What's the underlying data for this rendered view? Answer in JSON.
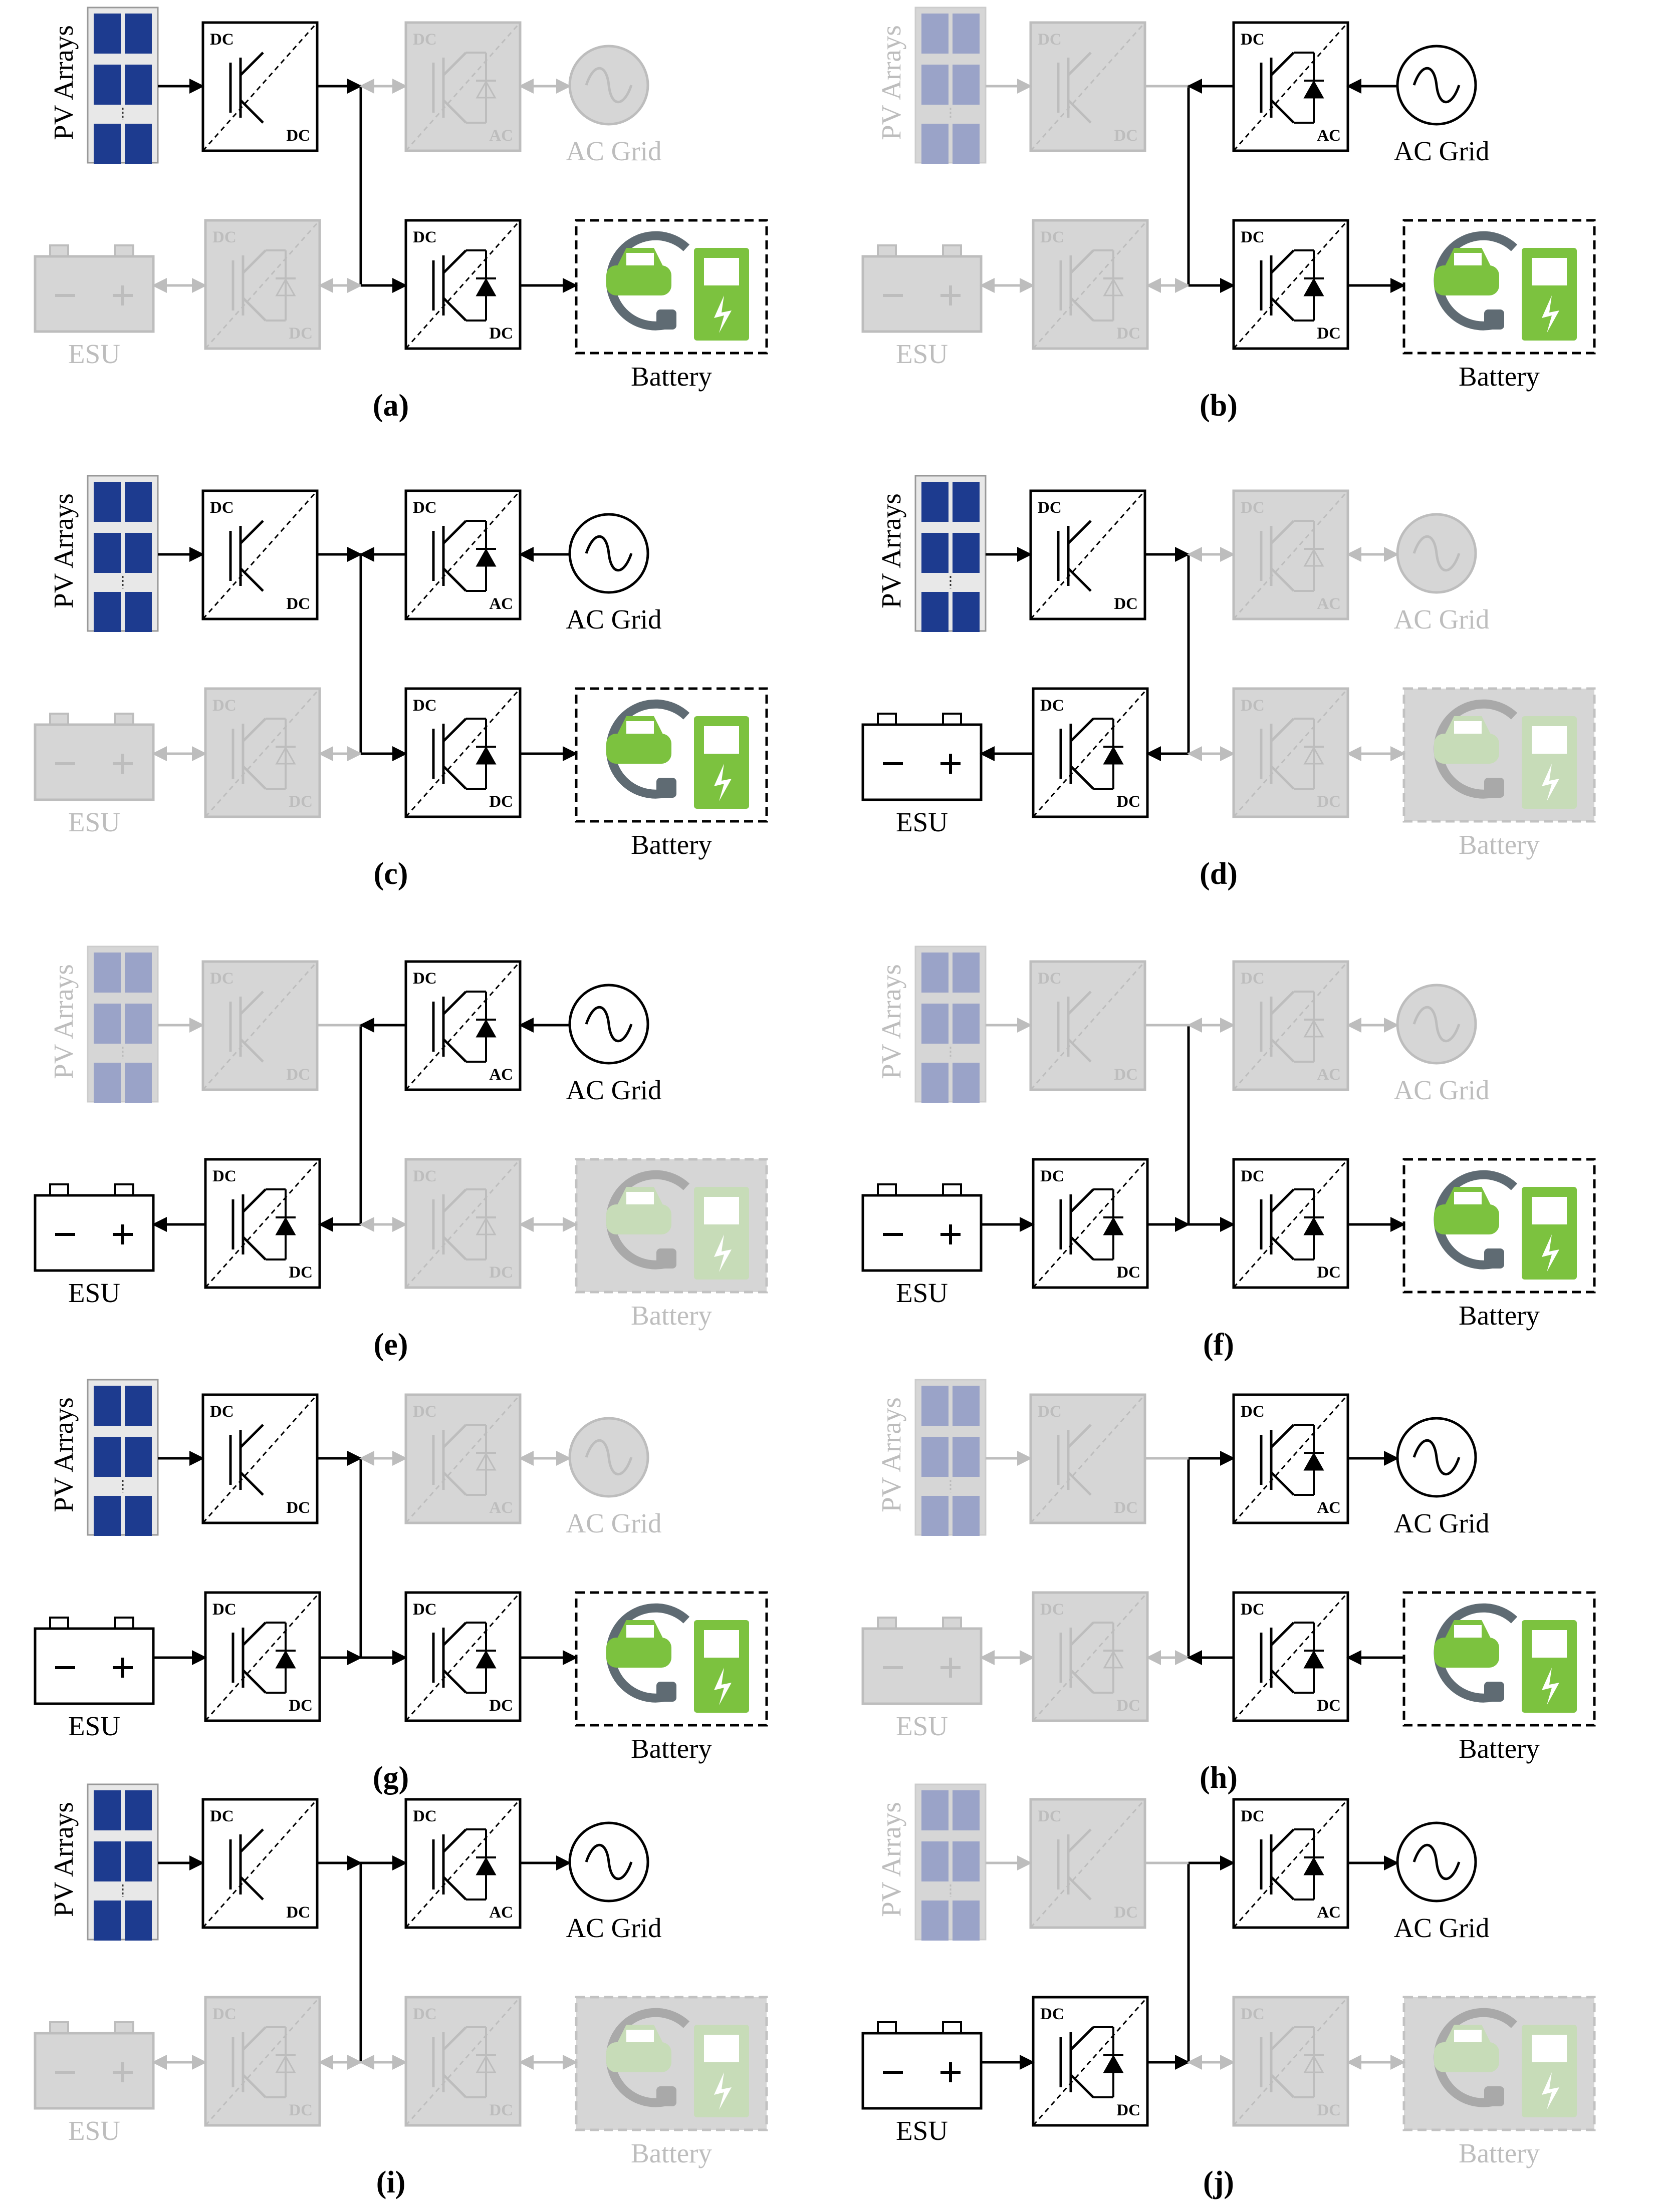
{
  "labels": {
    "pv": "PV Arrays",
    "grid": "AC Grid",
    "esu": "ESU",
    "battery": "Battery",
    "dc": "DC",
    "ac": "AC"
  },
  "colors": {
    "active": "#000000",
    "inactive": "#bdbdbd",
    "inactive_fill": "#d6d6d6",
    "pv_cell": "#1d3b8f",
    "pv_cell_inactive": "#9aa3c8",
    "ev_green": "#7cc23f",
    "ev_grey": "#5f6b73"
  },
  "panels": [
    {
      "caption": "(a)",
      "active": [
        "pv",
        "conv_pv",
        "conv_bat",
        "battery"
      ],
      "arrows": {
        "pv": "right",
        "bat": "right"
      }
    },
    {
      "caption": "(b)",
      "active": [
        "grid",
        "conv_grid",
        "conv_bat",
        "battery"
      ],
      "arrows": {
        "grid": "left",
        "bat": "right"
      }
    },
    {
      "caption": "(c)",
      "active": [
        "pv",
        "conv_pv",
        "grid",
        "conv_grid",
        "conv_bat",
        "battery"
      ],
      "arrows": {
        "pv": "right",
        "grid": "left",
        "bat": "right"
      }
    },
    {
      "caption": "(d)",
      "active": [
        "pv",
        "conv_pv",
        "esu",
        "conv_esu"
      ],
      "arrows": {
        "pv": "right",
        "esu": "left"
      }
    },
    {
      "caption": "(e)",
      "active": [
        "grid",
        "conv_grid",
        "esu",
        "conv_esu"
      ],
      "arrows": {
        "grid": "left",
        "esu": "left"
      }
    },
    {
      "caption": "(f)",
      "active": [
        "esu",
        "conv_esu",
        "conv_bat",
        "battery"
      ],
      "arrows": {
        "esu": "right",
        "bat": "right"
      }
    },
    {
      "caption": "(g)",
      "active": [
        "pv",
        "conv_pv",
        "esu",
        "conv_esu",
        "conv_bat",
        "battery"
      ],
      "arrows": {
        "pv": "right",
        "esu": "right",
        "bat": "right"
      }
    },
    {
      "caption": "(h)",
      "active": [
        "grid",
        "conv_grid",
        "conv_bat",
        "battery"
      ],
      "arrows": {
        "grid": "right",
        "bat": "left"
      }
    },
    {
      "caption": "(i)",
      "active": [
        "pv",
        "conv_pv",
        "grid",
        "conv_grid"
      ],
      "arrows": {
        "pv": "right",
        "grid": "right"
      }
    },
    {
      "caption": "(j)",
      "active": [
        "esu",
        "conv_esu",
        "grid",
        "conv_grid"
      ],
      "arrows": {
        "esu": "right",
        "grid": "right"
      }
    }
  ]
}
